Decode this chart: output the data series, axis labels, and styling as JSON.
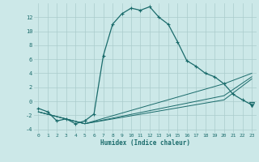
{
  "xlabel": "Humidex (Indice chaleur)",
  "bg_color": "#cce8e8",
  "grid_color": "#b8d8d8",
  "line_color": "#1a6b6b",
  "xlim": [
    -0.5,
    23.5
  ],
  "ylim": [
    -4.5,
    14.0
  ],
  "xticks": [
    0,
    1,
    2,
    3,
    4,
    5,
    6,
    7,
    8,
    9,
    10,
    11,
    12,
    13,
    14,
    15,
    16,
    17,
    18,
    19,
    20,
    21,
    22,
    23
  ],
  "yticks": [
    -4,
    -2,
    0,
    2,
    4,
    6,
    8,
    10,
    12
  ],
  "series1_x": [
    0,
    1,
    2,
    3,
    4,
    5,
    5,
    6,
    7,
    8,
    9,
    10,
    11,
    12,
    13,
    14,
    15,
    16,
    17,
    18,
    19,
    20,
    21,
    22,
    23
  ],
  "series1_y": [
    -1,
    -1.5,
    -2.8,
    -2.5,
    -3.2,
    -2.8,
    -2.8,
    -1.8,
    6.5,
    11,
    12.5,
    13.3,
    13.0,
    13.5,
    12.0,
    11.0,
    8.5,
    5.8,
    5.0,
    4.0,
    3.5,
    2.5,
    1.0,
    0.2,
    -0.5
  ],
  "series2_x": [
    0,
    5,
    20,
    23
  ],
  "series2_y": [
    -1.5,
    -3.2,
    0.2,
    3.2
  ],
  "series3_x": [
    0,
    5,
    20,
    23
  ],
  "series3_y": [
    -1.5,
    -3.2,
    0.8,
    3.5
  ],
  "series4_x": [
    0,
    5,
    20,
    23
  ],
  "series4_y": [
    -1.5,
    -3.2,
    2.5,
    4.0
  ],
  "marker_down_x": 23,
  "marker_down_y": -0.5
}
